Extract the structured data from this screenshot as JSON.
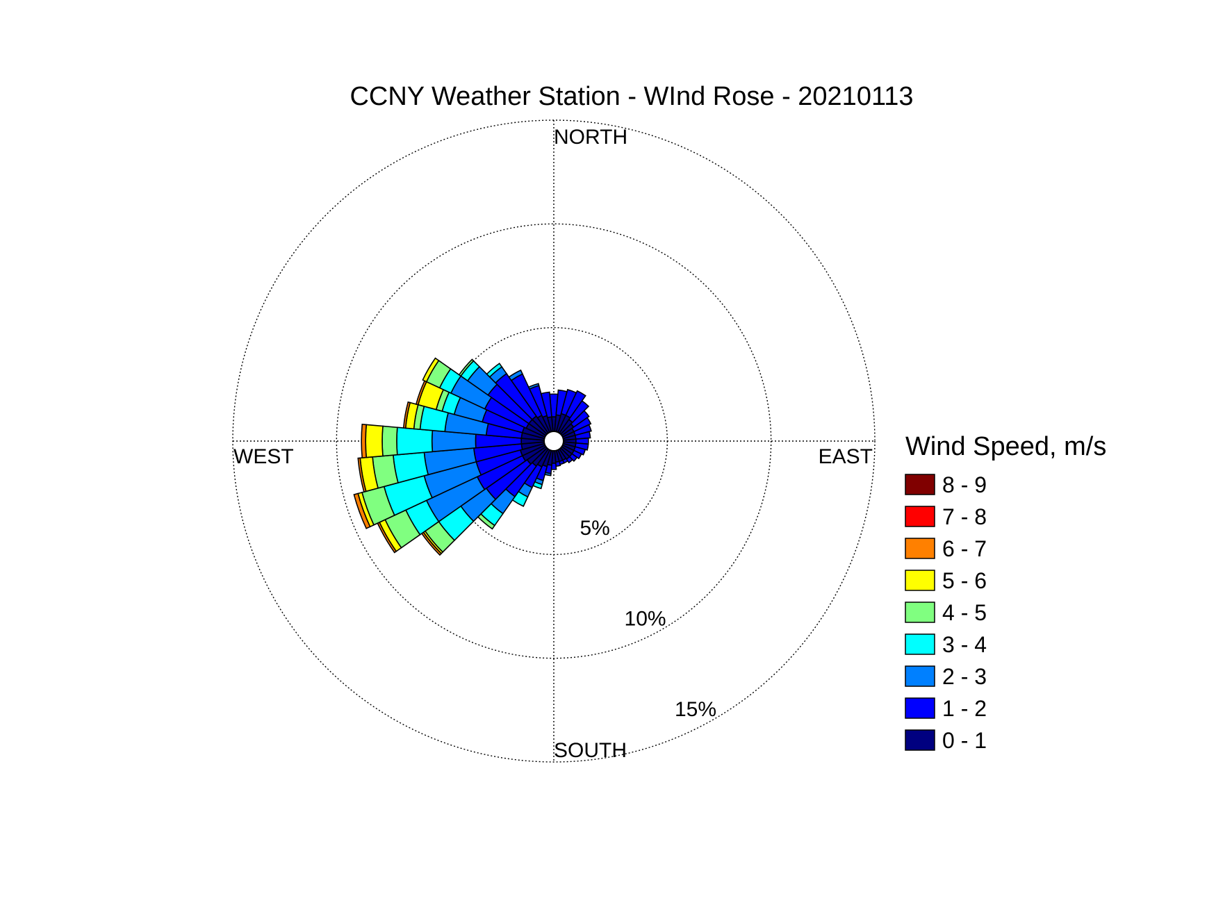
{
  "chart_data": {
    "type": "wind_rose",
    "title": "CCNY Weather Station - WInd Rose - 20210113",
    "directions": {
      "north": "NORTH",
      "east": "EAST",
      "south": "SOUTH",
      "west": "WEST"
    },
    "radial_ticks": [
      {
        "value": 5,
        "label": "5%"
      },
      {
        "value": 10,
        "label": "10%"
      },
      {
        "value": 15,
        "label": "15%"
      }
    ],
    "rmax": 15,
    "legend": {
      "title": "Wind Speed, m/s",
      "bins": [
        {
          "label": "8 - 9",
          "color": "#800000"
        },
        {
          "label": "7 - 8",
          "color": "#ff0000"
        },
        {
          "label": "6 - 7",
          "color": "#ff8000"
        },
        {
          "label": "5 - 6",
          "color": "#ffff00"
        },
        {
          "label": "4 - 5",
          "color": "#80ff80"
        },
        {
          "label": "3 - 4",
          "color": "#00ffff"
        },
        {
          "label": "2 - 3",
          "color": "#0080ff"
        },
        {
          "label": "1 - 2",
          "color": "#0000ff"
        },
        {
          "label": "0 - 1",
          "color": "#000080"
        }
      ]
    },
    "sector_width_deg": 10,
    "sectors": [
      {
        "dir": 0,
        "cum": [
          0.7,
          1.8
        ]
      },
      {
        "dir": 10,
        "cum": [
          0.8,
          2.0
        ]
      },
      {
        "dir": 20,
        "cum": [
          0.9,
          2.1
        ]
      },
      {
        "dir": 30,
        "cum": [
          0.9,
          2.2
        ]
      },
      {
        "dir": 40,
        "cum": [
          0.8,
          1.9
        ]
      },
      {
        "dir": 50,
        "cum": [
          0.7,
          1.6
        ]
      },
      {
        "dir": 60,
        "cum": [
          0.6,
          1.5
        ]
      },
      {
        "dir": 70,
        "cum": [
          0.6,
          1.4
        ]
      },
      {
        "dir": 80,
        "cum": [
          0.6,
          1.3
        ]
      },
      {
        "dir": 90,
        "cum": [
          0.6,
          1.2
        ]
      },
      {
        "dir": 100,
        "cum": [
          0.6,
          1.2
        ]
      },
      {
        "dir": 110,
        "cum": [
          0.6,
          1.1
        ]
      },
      {
        "dir": 120,
        "cum": [
          0.6,
          1.0
        ]
      },
      {
        "dir": 130,
        "cum": [
          0.6,
          0.9
        ]
      },
      {
        "dir": 140,
        "cum": [
          0.6,
          0.8
        ]
      },
      {
        "dir": 150,
        "cum": [
          0.55,
          0.7
        ]
      },
      {
        "dir": 160,
        "cum": [
          0.55,
          0.7
        ]
      },
      {
        "dir": 170,
        "cum": [
          0.55,
          0.75
        ]
      },
      {
        "dir": 180,
        "cum": [
          0.6,
          0.9
        ]
      },
      {
        "dir": 190,
        "cum": [
          0.7,
          1.1,
          1.2
        ]
      },
      {
        "dir": 200,
        "cum": [
          0.8,
          1.5,
          1.7,
          1.9
        ]
      },
      {
        "dir": 210,
        "cum": [
          0.9,
          2.0,
          2.5,
          3.0
        ]
      },
      {
        "dir": 220,
        "cum": [
          1.0,
          2.8,
          3.8,
          4.5,
          4.7
        ]
      },
      {
        "dir": 230,
        "cum": [
          1.1,
          3.5,
          5.0,
          6.3,
          7.1,
          7.2,
          7.3
        ]
      },
      {
        "dir": 240,
        "cum": [
          1.2,
          3.6,
          6.3,
          7.4,
          8.5,
          8.8,
          8.9
        ]
      },
      {
        "dir": 250,
        "cum": [
          1.2,
          3.4,
          6.0,
          8.0,
          9.1,
          9.3,
          9.5
        ]
      },
      {
        "dir": 260,
        "cum": [
          1.1,
          3.4,
          5.8,
          7.3,
          8.3,
          8.9,
          9.0
        ]
      },
      {
        "dir": 270,
        "cum": [
          1.1,
          3.3,
          5.4,
          7.1,
          7.8,
          8.6,
          8.8
        ]
      },
      {
        "dir": 280,
        "cum": [
          1.1,
          2.8,
          4.8,
          6.0,
          6.3,
          6.7,
          6.8
        ]
      },
      {
        "dir": 290,
        "cum": [
          1.1,
          3.1,
          4.5,
          5.1,
          5.4,
          6.3,
          6.4
        ]
      },
      {
        "dir": 300,
        "cum": [
          1.0,
          3.2,
          5.0,
          5.6,
          6.3,
          6.5
        ]
      },
      {
        "dir": 310,
        "cum": [
          1.0,
          3.4,
          4.6,
          5.0,
          5.1
        ]
      },
      {
        "dir": 320,
        "cum": [
          1.0,
          3.5,
          3.9,
          4.1
        ]
      },
      {
        "dir": 330,
        "cum": [
          0.9,
          3.1,
          3.3
        ]
      },
      {
        "dir": 340,
        "cum": [
          0.8,
          2.3,
          2.4
        ]
      },
      {
        "dir": 350,
        "cum": [
          0.7,
          1.9
        ]
      }
    ]
  }
}
